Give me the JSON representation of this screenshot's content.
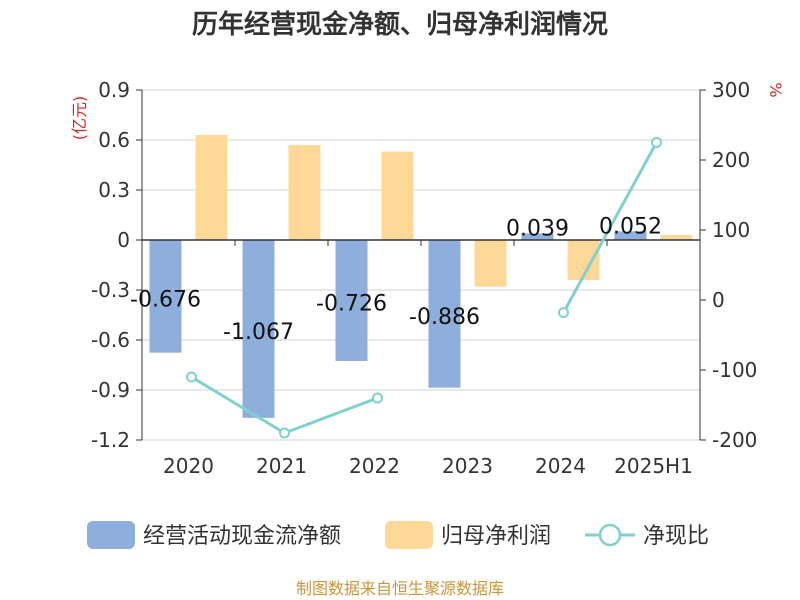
{
  "chart_data": {
    "type": "bar",
    "title": "历年经营现金净额、归母净利润情况",
    "categories": [
      "2020",
      "2021",
      "2022",
      "2023",
      "2024",
      "2025H1"
    ],
    "series": [
      {
        "name": "经营活动现金流净额",
        "kind": "bar",
        "axis": "left",
        "color": "#8eaedc",
        "values": [
          -0.676,
          -1.067,
          -0.726,
          -0.886,
          0.039,
          0.052
        ],
        "labels": [
          "-0.676",
          "-1.067",
          "-0.726",
          "-0.886",
          "0.039",
          "0.052"
        ]
      },
      {
        "name": "归母净利润",
        "kind": "bar",
        "axis": "left",
        "color": "#fed897",
        "values": [
          0.63,
          0.57,
          0.53,
          -0.28,
          -0.24,
          0.03
        ]
      },
      {
        "name": "净现比",
        "kind": "line",
        "axis": "right",
        "color": "#80d0d0",
        "values": [
          -110,
          -190,
          -140,
          null,
          -18,
          225
        ]
      }
    ],
    "y_left": {
      "unit": "(亿元)",
      "min": -1.2,
      "max": 0.9,
      "ticks": [
        "0.9",
        "0.6",
        "0.3",
        "0",
        "-0.3",
        "-0.6",
        "-0.9",
        "-1.2"
      ],
      "tick_values": [
        0.9,
        0.6,
        0.3,
        0,
        -0.3,
        -0.6,
        -0.9,
        -1.2
      ]
    },
    "y_right": {
      "unit": "%",
      "min": -200,
      "max": 300,
      "ticks": [
        "300",
        "200",
        "100",
        "0",
        "-100",
        "-200"
      ],
      "tick_values": [
        300,
        200,
        100,
        0,
        -100,
        -200
      ]
    },
    "grid": true,
    "legend_position": "bottom",
    "source": "制图数据来自恒生聚源数据库"
  }
}
